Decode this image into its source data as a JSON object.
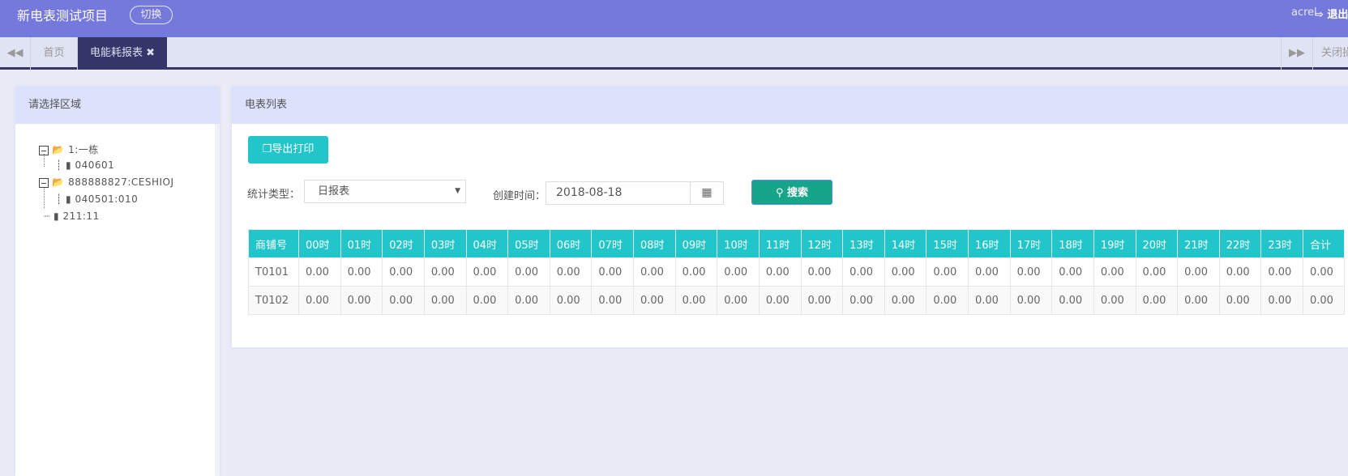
{
  "header": {
    "title": "新电表测试项目",
    "switch_label": "切换",
    "user": "acrel",
    "logout_label": "退出"
  },
  "tabs": {
    "home": "首页",
    "active": "电能耗报表",
    "close_others": "关闭操作"
  },
  "left_panel": {
    "title": "请选择区域",
    "tree": [
      {
        "label": "1:一栋",
        "children": [
          {
            "label": "040601"
          }
        ]
      },
      {
        "label": "888888827:CESHIOJ",
        "children": [
          {
            "label": "040501:010"
          }
        ]
      },
      {
        "label": "211:11"
      }
    ]
  },
  "right_panel": {
    "title": "电表列表",
    "export_label": "导出打印",
    "stat_type_label": "统计类型：",
    "stat_type_value": "日报表",
    "created_label": "创建时间：",
    "created_value": "2018-08-18",
    "search_label": "搜索"
  },
  "table": {
    "headers": [
      "商铺号",
      "00时",
      "01时",
      "02时",
      "03时",
      "04时",
      "05时",
      "06时",
      "07时",
      "08时",
      "09时",
      "10时",
      "11时",
      "12时",
      "13时",
      "14时",
      "15时",
      "16时",
      "17时",
      "18时",
      "19时",
      "20时",
      "21时",
      "22时",
      "23时",
      "合计"
    ],
    "rows": [
      [
        "T0101",
        "0.00",
        "0.00",
        "0.00",
        "0.00",
        "0.00",
        "0.00",
        "0.00",
        "0.00",
        "0.00",
        "0.00",
        "0.00",
        "0.00",
        "0.00",
        "0.00",
        "0.00",
        "0.00",
        "0.00",
        "0.00",
        "0.00",
        "0.00",
        "0.00",
        "0.00",
        "0.00",
        "0.00",
        "0.00"
      ],
      [
        "T0102",
        "0.00",
        "0.00",
        "0.00",
        "0.00",
        "0.00",
        "0.00",
        "0.00",
        "0.00",
        "0.00",
        "0.00",
        "0.00",
        "0.00",
        "0.00",
        "0.00",
        "0.00",
        "0.00",
        "0.00",
        "0.00",
        "0.00",
        "0.00",
        "0.00",
        "0.00",
        "0.00",
        "0.00",
        "0.00"
      ]
    ]
  },
  "colors": {
    "header": "#7479db",
    "active_tab": "#34366a",
    "teal": "#22c5c9",
    "search": "#17a589"
  }
}
